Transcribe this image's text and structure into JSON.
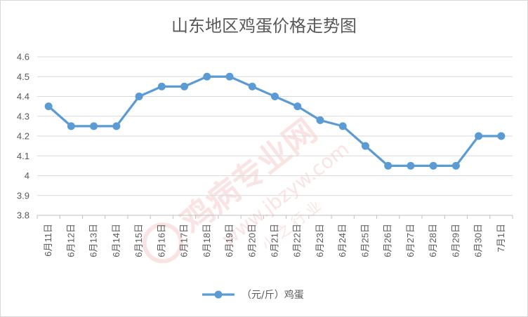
{
  "chart_data": {
    "type": "line",
    "title": "山东地区鸡蛋价格走势图",
    "categories": [
      "6月11日",
      "6月12日",
      "6月13日",
      "6月14日",
      "6月15日",
      "6月16日",
      "6月17日",
      "6月18日",
      "6月19日",
      "6月20日",
      "6月21日",
      "6月22日",
      "6月23日",
      "6月24日",
      "6月25日",
      "6月26日",
      "6月27日",
      "6月28日",
      "6月29日",
      "6月30日",
      "7月1日"
    ],
    "series": [
      {
        "name": "（元/斤）鸡蛋",
        "values": [
          4.35,
          4.25,
          4.25,
          4.25,
          4.4,
          4.45,
          4.45,
          4.5,
          4.5,
          4.45,
          4.4,
          4.35,
          4.28,
          4.25,
          4.15,
          4.05,
          4.05,
          4.05,
          4.05,
          4.2,
          4.2
        ]
      }
    ],
    "ylim": [
      3.8,
      4.6
    ],
    "yticks": [
      "3.8",
      "3.9",
      "4",
      "4.1",
      "4.2",
      "4.3",
      "4.4",
      "4.5",
      "4.6"
    ],
    "xlabel": "",
    "ylabel": "",
    "grid": true,
    "legend_position": "bottom",
    "colors": {
      "series": "#5b9bd5"
    }
  },
  "watermark": {
    "brand": "鸡病专业网",
    "url": "www.jbzyw.com",
    "slogan": "小 之 行 业"
  }
}
